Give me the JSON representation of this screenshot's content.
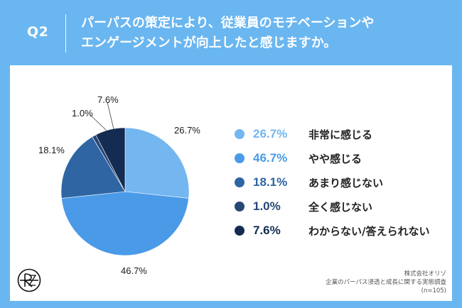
{
  "header": {
    "question_number": "Q2",
    "title_line1": "パーパスの策定により、従業員のモチベーションや",
    "title_line2": "エンゲージメントが向上したと感じますか。"
  },
  "chart_data": {
    "type": "pie",
    "slices": [
      {
        "label": "非常に感じる",
        "value": 26.7,
        "display": "26.7%",
        "color": "#74b6f0"
      },
      {
        "label": "やや感じる",
        "value": 46.7,
        "display": "46.7%",
        "color": "#4a9ae8"
      },
      {
        "label": "あまり感じない",
        "value": 18.1,
        "display": "18.1%",
        "color": "#2f65a3"
      },
      {
        "label": "全く感じない",
        "value": 1.0,
        "display": "1.0%",
        "color": "#274775"
      },
      {
        "label": "わからない/答えられない",
        "value": 7.6,
        "display": "7.6%",
        "color": "#142c52"
      }
    ],
    "start_angle": "12 o'clock",
    "direction": "clockwise"
  },
  "legend": {
    "value_colors": [
      "#74b6f0",
      "#4a9ae8",
      "#2f65a3",
      "#274775",
      "#142c52"
    ]
  },
  "source": {
    "line1": "株式会社オリゾ",
    "line2": "企業のパーパス浸透と成長に関する実態調査",
    "line3": "(n=105)"
  },
  "logo": {
    "icon": "orizo-logo-icon"
  }
}
